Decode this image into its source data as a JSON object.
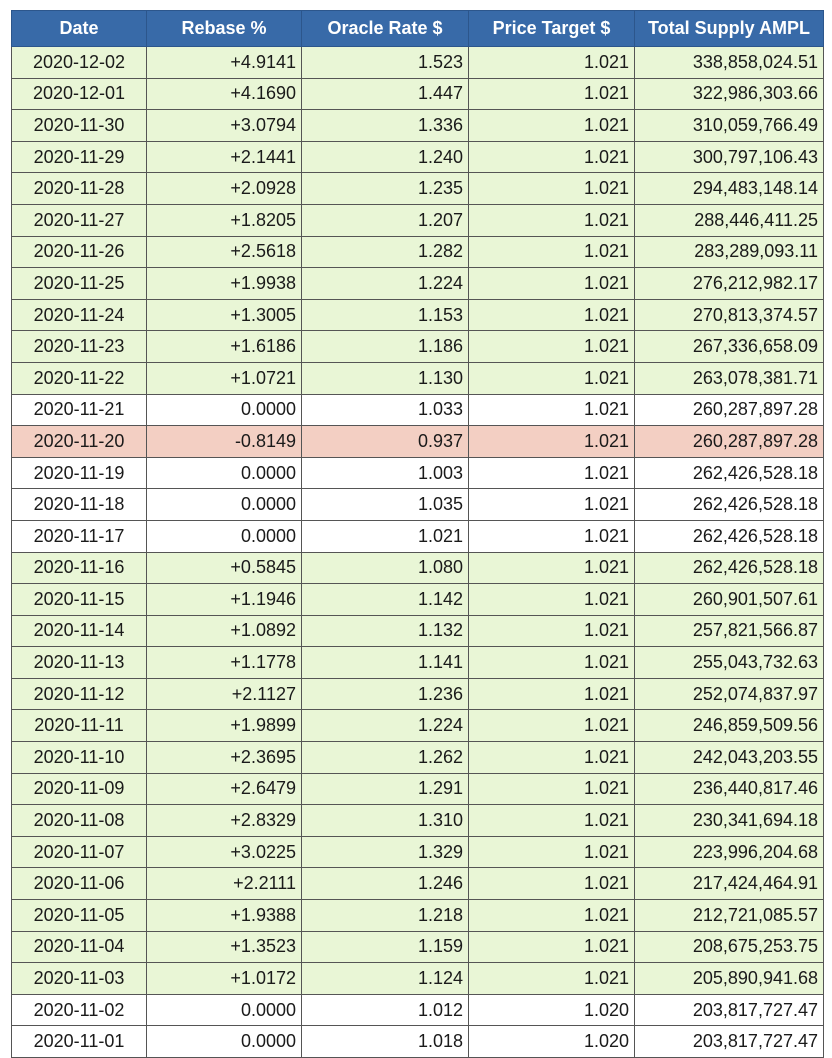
{
  "colors": {
    "header_bg": "#386aa8",
    "positive_row": "#e9f6d6",
    "negative_row": "#f3cfc3",
    "neutral_row": "#ffffff"
  },
  "table": {
    "headers": [
      "Date",
      "Rebase %",
      "Oracle Rate $",
      "Price Target $",
      "Total Supply AMPL"
    ],
    "rows": [
      {
        "date": "2020-12-02",
        "rebase": "+4.9141",
        "oracle": "1.523",
        "target": "1.021",
        "supply": "338,858,024.51",
        "status": "pos"
      },
      {
        "date": "2020-12-01",
        "rebase": "+4.1690",
        "oracle": "1.447",
        "target": "1.021",
        "supply": "322,986,303.66",
        "status": "pos"
      },
      {
        "date": "2020-11-30",
        "rebase": "+3.0794",
        "oracle": "1.336",
        "target": "1.021",
        "supply": "310,059,766.49",
        "status": "pos"
      },
      {
        "date": "2020-11-29",
        "rebase": "+2.1441",
        "oracle": "1.240",
        "target": "1.021",
        "supply": "300,797,106.43",
        "status": "pos"
      },
      {
        "date": "2020-11-28",
        "rebase": "+2.0928",
        "oracle": "1.235",
        "target": "1.021",
        "supply": "294,483,148.14",
        "status": "pos"
      },
      {
        "date": "2020-11-27",
        "rebase": "+1.8205",
        "oracle": "1.207",
        "target": "1.021",
        "supply": "288,446,411.25",
        "status": "pos"
      },
      {
        "date": "2020-11-26",
        "rebase": "+2.5618",
        "oracle": "1.282",
        "target": "1.021",
        "supply": "283,289,093.11",
        "status": "pos"
      },
      {
        "date": "2020-11-25",
        "rebase": "+1.9938",
        "oracle": "1.224",
        "target": "1.021",
        "supply": "276,212,982.17",
        "status": "pos"
      },
      {
        "date": "2020-11-24",
        "rebase": "+1.3005",
        "oracle": "1.153",
        "target": "1.021",
        "supply": "270,813,374.57",
        "status": "pos"
      },
      {
        "date": "2020-11-23",
        "rebase": "+1.6186",
        "oracle": "1.186",
        "target": "1.021",
        "supply": "267,336,658.09",
        "status": "pos"
      },
      {
        "date": "2020-11-22",
        "rebase": "+1.0721",
        "oracle": "1.130",
        "target": "1.021",
        "supply": "263,078,381.71",
        "status": "pos"
      },
      {
        "date": "2020-11-21",
        "rebase": "0.0000",
        "oracle": "1.033",
        "target": "1.021",
        "supply": "260,287,897.28",
        "status": "zero"
      },
      {
        "date": "2020-11-20",
        "rebase": "-0.8149",
        "oracle": "0.937",
        "target": "1.021",
        "supply": "260,287,897.28",
        "status": "neg"
      },
      {
        "date": "2020-11-19",
        "rebase": "0.0000",
        "oracle": "1.003",
        "target": "1.021",
        "supply": "262,426,528.18",
        "status": "zero"
      },
      {
        "date": "2020-11-18",
        "rebase": "0.0000",
        "oracle": "1.035",
        "target": "1.021",
        "supply": "262,426,528.18",
        "status": "zero"
      },
      {
        "date": "2020-11-17",
        "rebase": "0.0000",
        "oracle": "1.021",
        "target": "1.021",
        "supply": "262,426,528.18",
        "status": "zero"
      },
      {
        "date": "2020-11-16",
        "rebase": "+0.5845",
        "oracle": "1.080",
        "target": "1.021",
        "supply": "262,426,528.18",
        "status": "pos"
      },
      {
        "date": "2020-11-15",
        "rebase": "+1.1946",
        "oracle": "1.142",
        "target": "1.021",
        "supply": "260,901,507.61",
        "status": "pos"
      },
      {
        "date": "2020-11-14",
        "rebase": "+1.0892",
        "oracle": "1.132",
        "target": "1.021",
        "supply": "257,821,566.87",
        "status": "pos"
      },
      {
        "date": "2020-11-13",
        "rebase": "+1.1778",
        "oracle": "1.141",
        "target": "1.021",
        "supply": "255,043,732.63",
        "status": "pos"
      },
      {
        "date": "2020-11-12",
        "rebase": "+2.1127",
        "oracle": "1.236",
        "target": "1.021",
        "supply": "252,074,837.97",
        "status": "pos"
      },
      {
        "date": "2020-11-11",
        "rebase": "+1.9899",
        "oracle": "1.224",
        "target": "1.021",
        "supply": "246,859,509.56",
        "status": "pos"
      },
      {
        "date": "2020-11-10",
        "rebase": "+2.3695",
        "oracle": "1.262",
        "target": "1.021",
        "supply": "242,043,203.55",
        "status": "pos"
      },
      {
        "date": "2020-11-09",
        "rebase": "+2.6479",
        "oracle": "1.291",
        "target": "1.021",
        "supply": "236,440,817.46",
        "status": "pos"
      },
      {
        "date": "2020-11-08",
        "rebase": "+2.8329",
        "oracle": "1.310",
        "target": "1.021",
        "supply": "230,341,694.18",
        "status": "pos"
      },
      {
        "date": "2020-11-07",
        "rebase": "+3.0225",
        "oracle": "1.329",
        "target": "1.021",
        "supply": "223,996,204.68",
        "status": "pos"
      },
      {
        "date": "2020-11-06",
        "rebase": "+2.2111",
        "oracle": "1.246",
        "target": "1.021",
        "supply": "217,424,464.91",
        "status": "pos"
      },
      {
        "date": "2020-11-05",
        "rebase": "+1.9388",
        "oracle": "1.218",
        "target": "1.021",
        "supply": "212,721,085.57",
        "status": "pos"
      },
      {
        "date": "2020-11-04",
        "rebase": "+1.3523",
        "oracle": "1.159",
        "target": "1.021",
        "supply": "208,675,253.75",
        "status": "pos"
      },
      {
        "date": "2020-11-03",
        "rebase": "+1.0172",
        "oracle": "1.124",
        "target": "1.021",
        "supply": "205,890,941.68",
        "status": "pos"
      },
      {
        "date": "2020-11-02",
        "rebase": "0.0000",
        "oracle": "1.012",
        "target": "1.020",
        "supply": "203,817,727.47",
        "status": "zero"
      },
      {
        "date": "2020-11-01",
        "rebase": "0.0000",
        "oracle": "1.018",
        "target": "1.020",
        "supply": "203,817,727.47",
        "status": "zero"
      }
    ]
  }
}
